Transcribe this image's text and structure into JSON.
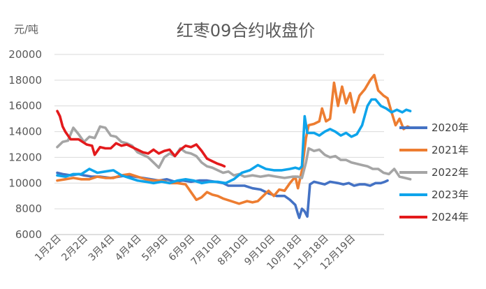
{
  "chart_data": {
    "type": "line",
    "title": "红枣09合约收盘价",
    "unit_label": "元/吨",
    "ylim": [
      6000,
      20000
    ],
    "yticks": [
      6000,
      8000,
      10000,
      12000,
      14000,
      16000,
      18000,
      20000
    ],
    "grid": true,
    "legend_position": "right",
    "categories": [
      "1月2日",
      "2月2日",
      "3月4日",
      "4月4日",
      "5月9日",
      "6月9日",
      "7月10日",
      "8月10日",
      "9月10日",
      "10月18日",
      "11月18日",
      "12月19日"
    ],
    "series": [
      {
        "name": "2020年",
        "color": "#4472c4",
        "points": [
          [
            0,
            10800
          ],
          [
            0.2,
            10700
          ],
          [
            0.5,
            10600
          ],
          [
            0.8,
            10700
          ],
          [
            1,
            10600
          ],
          [
            1.3,
            10500
          ],
          [
            1.6,
            10500
          ],
          [
            2,
            10400
          ],
          [
            2.3,
            10500
          ],
          [
            2.6,
            10600
          ],
          [
            2.9,
            10500
          ],
          [
            3.2,
            10400
          ],
          [
            3.5,
            10300
          ],
          [
            3.8,
            10200
          ],
          [
            4.1,
            10300
          ],
          [
            4.4,
            10100
          ],
          [
            4.7,
            10200
          ],
          [
            5,
            10100
          ],
          [
            5.3,
            10200
          ],
          [
            5.6,
            10200
          ],
          [
            5.9,
            10100
          ],
          [
            6.2,
            10000
          ],
          [
            6.4,
            9800
          ],
          [
            6.7,
            9800
          ],
          [
            7,
            9800
          ],
          [
            7.3,
            9600
          ],
          [
            7.6,
            9500
          ],
          [
            7.9,
            9200
          ],
          [
            8.2,
            9000
          ],
          [
            8.5,
            9000
          ],
          [
            8.7,
            8700
          ],
          [
            8.9,
            8300
          ],
          [
            9,
            7600
          ],
          [
            9.05,
            7300
          ],
          [
            9.15,
            8000
          ],
          [
            9.25,
            7800
          ],
          [
            9.35,
            7400
          ],
          [
            9.45,
            9900
          ],
          [
            9.6,
            10100
          ],
          [
            9.8,
            10000
          ],
          [
            10,
            9900
          ],
          [
            10.2,
            10100
          ],
          [
            10.5,
            10000
          ],
          [
            10.7,
            9900
          ],
          [
            10.9,
            10000
          ],
          [
            11.1,
            9800
          ],
          [
            11.3,
            9900
          ],
          [
            11.5,
            9900
          ],
          [
            11.7,
            9800
          ],
          [
            11.9,
            10000
          ],
          [
            12.1,
            10000
          ],
          [
            12.25,
            10100
          ],
          [
            12.35,
            10200
          ]
        ]
      },
      {
        "name": "2021年",
        "color": "#ed7d31",
        "points": [
          [
            0,
            10200
          ],
          [
            0.3,
            10300
          ],
          [
            0.6,
            10400
          ],
          [
            0.9,
            10300
          ],
          [
            1.2,
            10300
          ],
          [
            1.5,
            10500
          ],
          [
            1.8,
            10400
          ],
          [
            2.1,
            10400
          ],
          [
            2.4,
            10600
          ],
          [
            2.7,
            10700
          ],
          [
            3,
            10500
          ],
          [
            3.3,
            10300
          ],
          [
            3.6,
            10200
          ],
          [
            3.9,
            10200
          ],
          [
            4.2,
            10000
          ],
          [
            4.5,
            10000
          ],
          [
            4.8,
            9900
          ],
          [
            5,
            9300
          ],
          [
            5.2,
            8700
          ],
          [
            5.4,
            8900
          ],
          [
            5.6,
            9300
          ],
          [
            5.8,
            9100
          ],
          [
            6,
            9000
          ],
          [
            6.2,
            8800
          ],
          [
            6.5,
            8600
          ],
          [
            6.8,
            8400
          ],
          [
            7.1,
            8600
          ],
          [
            7.3,
            8500
          ],
          [
            7.5,
            8600
          ],
          [
            7.7,
            9000
          ],
          [
            7.9,
            9400
          ],
          [
            8.1,
            9000
          ],
          [
            8.3,
            9500
          ],
          [
            8.5,
            9400
          ],
          [
            8.7,
            10000
          ],
          [
            8.9,
            10500
          ],
          [
            9,
            9600
          ],
          [
            9.15,
            11000
          ],
          [
            9.3,
            13500
          ],
          [
            9.4,
            14500
          ],
          [
            9.6,
            14600
          ],
          [
            9.8,
            14800
          ],
          [
            9.9,
            15800
          ],
          [
            10.05,
            14800
          ],
          [
            10.2,
            15000
          ],
          [
            10.35,
            17800
          ],
          [
            10.5,
            16000
          ],
          [
            10.65,
            17500
          ],
          [
            10.8,
            16200
          ],
          [
            10.95,
            17000
          ],
          [
            11.1,
            15500
          ],
          [
            11.3,
            16800
          ],
          [
            11.5,
            17300
          ],
          [
            11.7,
            18000
          ],
          [
            11.85,
            18400
          ],
          [
            12,
            17200
          ],
          [
            12.2,
            16800
          ],
          [
            12.35,
            16600
          ],
          [
            12.5,
            15500
          ],
          [
            12.65,
            14500
          ],
          [
            12.8,
            15000
          ],
          [
            12.95,
            14200
          ],
          [
            13.1,
            14400
          ],
          [
            13.2,
            14300
          ]
        ]
      },
      {
        "name": "2022年",
        "color": "#a5a5a5",
        "points": [
          [
            0,
            12800
          ],
          [
            0.2,
            13200
          ],
          [
            0.4,
            13300
          ],
          [
            0.6,
            14300
          ],
          [
            0.8,
            13800
          ],
          [
            1,
            13200
          ],
          [
            1.2,
            13600
          ],
          [
            1.4,
            13500
          ],
          [
            1.6,
            14400
          ],
          [
            1.8,
            14300
          ],
          [
            2,
            13700
          ],
          [
            2.2,
            13600
          ],
          [
            2.4,
            13200
          ],
          [
            2.6,
            13100
          ],
          [
            2.8,
            12900
          ],
          [
            3,
            12400
          ],
          [
            3.2,
            12200
          ],
          [
            3.4,
            12000
          ],
          [
            3.6,
            11600
          ],
          [
            3.8,
            11200
          ],
          [
            4,
            12000
          ],
          [
            4.2,
            12300
          ],
          [
            4.4,
            12100
          ],
          [
            4.6,
            12700
          ],
          [
            4.8,
            12400
          ],
          [
            5,
            12300
          ],
          [
            5.2,
            12100
          ],
          [
            5.4,
            11600
          ],
          [
            5.6,
            11300
          ],
          [
            5.8,
            11200
          ],
          [
            6,
            11000
          ],
          [
            6.2,
            10800
          ],
          [
            6.4,
            10900
          ],
          [
            6.6,
            10600
          ],
          [
            6.8,
            10700
          ],
          [
            7,
            10500
          ],
          [
            7.3,
            10600
          ],
          [
            7.6,
            10500
          ],
          [
            7.9,
            10600
          ],
          [
            8.2,
            10500
          ],
          [
            8.5,
            10400
          ],
          [
            8.8,
            10500
          ],
          [
            9,
            10500
          ],
          [
            9.15,
            10400
          ],
          [
            9.3,
            11600
          ],
          [
            9.4,
            12700
          ],
          [
            9.6,
            12500
          ],
          [
            9.8,
            12600
          ],
          [
            10,
            12200
          ],
          [
            10.2,
            12000
          ],
          [
            10.4,
            12100
          ],
          [
            10.6,
            11800
          ],
          [
            10.8,
            11800
          ],
          [
            11,
            11600
          ],
          [
            11.2,
            11500
          ],
          [
            11.4,
            11400
          ],
          [
            11.6,
            11300
          ],
          [
            11.8,
            11100
          ],
          [
            12,
            11100
          ],
          [
            12.2,
            10800
          ],
          [
            12.4,
            10700
          ],
          [
            12.6,
            11100
          ],
          [
            12.8,
            10500
          ],
          [
            13,
            10400
          ],
          [
            13.2,
            10300
          ]
        ]
      },
      {
        "name": "2023年",
        "color": "#0ea4eb",
        "points": [
          [
            0,
            10600
          ],
          [
            0.3,
            10500
          ],
          [
            0.6,
            10700
          ],
          [
            0.9,
            10700
          ],
          [
            1.2,
            11100
          ],
          [
            1.5,
            10800
          ],
          [
            1.8,
            10900
          ],
          [
            2.1,
            11000
          ],
          [
            2.4,
            10600
          ],
          [
            2.7,
            10400
          ],
          [
            3,
            10200
          ],
          [
            3.3,
            10100
          ],
          [
            3.6,
            10000
          ],
          [
            3.9,
            10100
          ],
          [
            4.2,
            10000
          ],
          [
            4.5,
            10200
          ],
          [
            4.8,
            10300
          ],
          [
            5.1,
            10200
          ],
          [
            5.4,
            10000
          ],
          [
            5.7,
            10100
          ],
          [
            6,
            10100
          ],
          [
            6.3,
            10000
          ],
          [
            6.6,
            10300
          ],
          [
            6.9,
            10800
          ],
          [
            7.2,
            11000
          ],
          [
            7.5,
            11400
          ],
          [
            7.8,
            11100
          ],
          [
            8.1,
            11000
          ],
          [
            8.4,
            11000
          ],
          [
            8.7,
            11100
          ],
          [
            8.9,
            11200
          ],
          [
            9.05,
            11100
          ],
          [
            9.15,
            11300
          ],
          [
            9.25,
            15200
          ],
          [
            9.35,
            13900
          ],
          [
            9.6,
            13900
          ],
          [
            9.8,
            13700
          ],
          [
            10,
            14000
          ],
          [
            10.2,
            14200
          ],
          [
            10.4,
            14000
          ],
          [
            10.6,
            13700
          ],
          [
            10.8,
            13900
          ],
          [
            11,
            13600
          ],
          [
            11.2,
            13800
          ],
          [
            11.4,
            14500
          ],
          [
            11.6,
            16000
          ],
          [
            11.75,
            16500
          ],
          [
            11.9,
            16500
          ],
          [
            12.1,
            16000
          ],
          [
            12.3,
            15800
          ],
          [
            12.5,
            15500
          ],
          [
            12.7,
            15700
          ],
          [
            12.9,
            15500
          ],
          [
            13.05,
            15700
          ],
          [
            13.2,
            15600
          ]
        ]
      },
      {
        "name": "2024年",
        "color": "#e31a1c",
        "points": [
          [
            0,
            15600
          ],
          [
            0.1,
            15200
          ],
          [
            0.2,
            14400
          ],
          [
            0.3,
            14000
          ],
          [
            0.5,
            13400
          ],
          [
            0.8,
            13400
          ],
          [
            1.1,
            13000
          ],
          [
            1.3,
            12900
          ],
          [
            1.4,
            12200
          ],
          [
            1.6,
            12800
          ],
          [
            1.8,
            12700
          ],
          [
            2,
            12700
          ],
          [
            2.2,
            13100
          ],
          [
            2.4,
            12900
          ],
          [
            2.6,
            13000
          ],
          [
            2.8,
            12800
          ],
          [
            3,
            12600
          ],
          [
            3.2,
            12400
          ],
          [
            3.4,
            12300
          ],
          [
            3.6,
            12600
          ],
          [
            3.8,
            12300
          ],
          [
            4,
            12500
          ],
          [
            4.2,
            12600
          ],
          [
            4.4,
            12100
          ],
          [
            4.6,
            12600
          ],
          [
            4.8,
            12900
          ],
          [
            5,
            12800
          ],
          [
            5.2,
            13000
          ],
          [
            5.4,
            12500
          ],
          [
            5.6,
            11900
          ],
          [
            5.8,
            11700
          ],
          [
            6,
            11500
          ],
          [
            6.15,
            11400
          ],
          [
            6.25,
            11300
          ]
        ]
      }
    ]
  }
}
